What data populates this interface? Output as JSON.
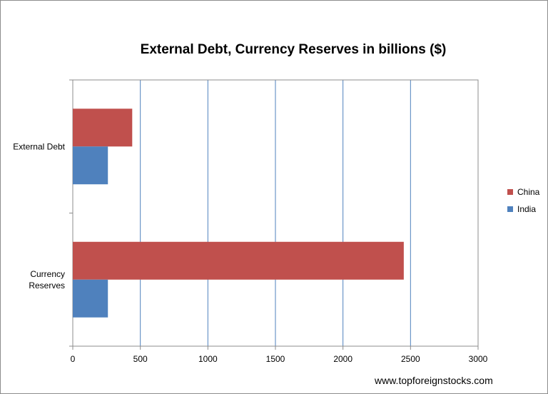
{
  "chart_data": {
    "type": "bar",
    "orientation": "horizontal",
    "title": "External Debt, Currency Reserves in billions ($)",
    "categories": [
      "External Debt",
      "Currency Reserves"
    ],
    "category_display": [
      [
        "External Debt"
      ],
      [
        "Currency",
        "Reserves"
      ]
    ],
    "series": [
      {
        "name": "China",
        "values": [
          440,
          2450
        ],
        "color": "#c0504d"
      },
      {
        "name": "India",
        "values": [
          260,
          260
        ],
        "color": "#4f81bd"
      }
    ],
    "xlim": [
      0,
      3000
    ],
    "xticks": [
      0,
      500,
      1000,
      1500,
      2000,
      2500,
      3000
    ],
    "grid": "vertical",
    "legend": "right",
    "xlabel": "",
    "ylabel": ""
  },
  "source": "www.topforeignstocks.com"
}
